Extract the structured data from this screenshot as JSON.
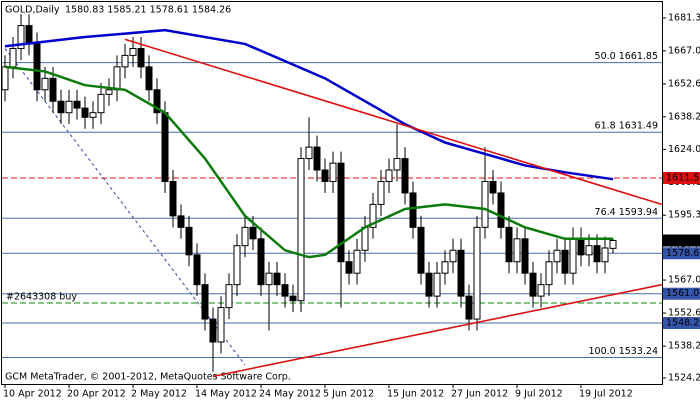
{
  "chart_data": {
    "type": "candlestick",
    "title": "GOLD,Daily",
    "subtitle": "1580.83 1585.21 1578.61 1584.26",
    "footer": "GCM MetaTrader, © 2001-2012, MetaQuotes Software Corp.",
    "categories": [
      "10 Apr 2012",
      null,
      null,
      null,
      null,
      null,
      null,
      null,
      "20 Apr 2012",
      null,
      null,
      null,
      null,
      null,
      null,
      null,
      "2 May 2012",
      null,
      null,
      null,
      null,
      null,
      null,
      null,
      "14 May 2012",
      null,
      null,
      null,
      null,
      null,
      null,
      null,
      "24 May 2012",
      null,
      null,
      null,
      null,
      null,
      null,
      null,
      "5 Jun 2012",
      null,
      null,
      null,
      null,
      null,
      null,
      null,
      "15 Jun 2012",
      null,
      null,
      null,
      null,
      null,
      null,
      null,
      "27 Jun 2012",
      null,
      null,
      null,
      null,
      null,
      null,
      null,
      "9 Jul 2012",
      null,
      null,
      null,
      null,
      null,
      null,
      null,
      "19 Jul 2012",
      null,
      null,
      null,
      null
    ],
    "open": [
      1650,
      1660,
      1668,
      1678,
      1670,
      1650,
      1655,
      1645,
      1640,
      1645,
      1642,
      1638,
      1640,
      1648,
      1650,
      1660,
      1665,
      1668,
      1660,
      1650,
      1640,
      1610,
      1595,
      1590,
      1578,
      1565,
      1550,
      1540,
      1555,
      1565,
      1582,
      1590,
      1585,
      1565,
      1570,
      1565,
      1560,
      1558,
      1620,
      1625,
      1615,
      1610,
      1618,
      1575,
      1570,
      1580,
      1590,
      1600,
      1610,
      1615,
      1620,
      1605,
      1590,
      1570,
      1560,
      1570,
      1575,
      1580,
      1560,
      1550,
      1590,
      1610,
      1605,
      1590,
      1575,
      1585,
      1570,
      1560,
      1565,
      1575,
      1580,
      1570,
      1585,
      1578,
      1582,
      1575,
      1580.83
    ],
    "high": [
      1665,
      1673,
      1683,
      1683,
      1675,
      1660,
      1660,
      1650,
      1650,
      1650,
      1647,
      1645,
      1653,
      1655,
      1665,
      1670,
      1673,
      1673,
      1665,
      1655,
      1645,
      1615,
      1600,
      1595,
      1583,
      1570,
      1555,
      1560,
      1570,
      1587,
      1595,
      1595,
      1590,
      1575,
      1575,
      1570,
      1565,
      1625,
      1638,
      1630,
      1620,
      1623,
      1623,
      1580,
      1585,
      1595,
      1605,
      1615,
      1620,
      1635,
      1625,
      1610,
      1595,
      1575,
      1575,
      1580,
      1585,
      1585,
      1565,
      1595,
      1625,
      1615,
      1610,
      1595,
      1590,
      1590,
      1575,
      1570,
      1580,
      1585,
      1585,
      1590,
      1590,
      1587,
      1587,
      1586,
      1585.21
    ],
    "low": [
      1645,
      1655,
      1663,
      1665,
      1645,
      1645,
      1640,
      1635,
      1635,
      1637,
      1633,
      1633,
      1635,
      1643,
      1645,
      1655,
      1660,
      1655,
      1645,
      1635,
      1605,
      1590,
      1585,
      1573,
      1560,
      1545,
      1527,
      1535,
      1550,
      1560,
      1577,
      1580,
      1560,
      1545,
      1560,
      1555,
      1553,
      1553,
      1615,
      1610,
      1605,
      1605,
      1555,
      1565,
      1565,
      1575,
      1585,
      1595,
      1605,
      1610,
      1600,
      1585,
      1565,
      1555,
      1555,
      1565,
      1570,
      1555,
      1545,
      1545,
      1585,
      1600,
      1585,
      1570,
      1570,
      1565,
      1555,
      1555,
      1560,
      1570,
      1565,
      1565,
      1573,
      1573,
      1570,
      1570,
      1578.61
    ],
    "close": [
      1660,
      1668,
      1678,
      1670,
      1650,
      1655,
      1645,
      1640,
      1645,
      1642,
      1638,
      1640,
      1648,
      1650,
      1660,
      1665,
      1668,
      1660,
      1650,
      1640,
      1610,
      1595,
      1590,
      1578,
      1565,
      1550,
      1540,
      1555,
      1565,
      1582,
      1590,
      1585,
      1565,
      1570,
      1565,
      1560,
      1558,
      1620,
      1625,
      1615,
      1610,
      1618,
      1575,
      1570,
      1580,
      1590,
      1600,
      1610,
      1615,
      1620,
      1605,
      1590,
      1570,
      1560,
      1570,
      1575,
      1580,
      1560,
      1550,
      1590,
      1610,
      1605,
      1590,
      1575,
      1585,
      1570,
      1560,
      1565,
      1575,
      1580,
      1570,
      1585,
      1578,
      1582,
      1575,
      1581,
      1584.26
    ],
    "lines": [
      {
        "color": "#0000cc",
        "x": [
          0,
          10,
          20,
          30,
          40,
          50,
          55,
          60,
          65,
          70,
          76
        ],
        "values": [
          1669,
          1673,
          1676,
          1670,
          1655,
          1635,
          1627,
          1622,
          1617,
          1614,
          1611
        ]
      },
      {
        "color": "#0a7a0a",
        "x": [
          0,
          5,
          10,
          15,
          20,
          25,
          30,
          35,
          38,
          40,
          45,
          50,
          55,
          60,
          65,
          70,
          76
        ],
        "values": [
          1660,
          1658,
          1652,
          1650,
          1640,
          1620,
          1595,
          1580,
          1577,
          1578,
          1590,
          1598,
          1600,
          1598,
          1590,
          1585,
          1585
        ]
      },
      {
        "color": "#dd1111",
        "x": [
          15,
          82.1
        ],
        "values": [
          1672,
          1600
        ]
      },
      {
        "color": "#dd1111",
        "x": [
          26,
          82.1
        ],
        "values": [
          1525,
          1565
        ]
      }
    ],
    "fib_line": {
      "color": "#3344aa",
      "x": [
        0,
        30
      ],
      "values": [
        1668,
        1530
      ]
    },
    "fib_levels": [
      {
        "label": "50.0 1661.85",
        "value": 1661.85
      },
      {
        "label": "61.8 1631.49",
        "value": 1631.49
      },
      {
        "label": "76.4 1593.94",
        "value": 1593.94
      },
      {
        "label": "100.0 1533.24",
        "value": 1533.24
      }
    ],
    "price_tags": [
      {
        "value": 1611.52,
        "color": "#dd1111"
      },
      {
        "value": 1584.26,
        "color": "#000000"
      },
      {
        "value": 1578.69,
        "color": "#3355aa"
      },
      {
        "value": 1561.05,
        "color": "#3355aa"
      },
      {
        "value": 1548.28,
        "color": "#3355aa"
      }
    ],
    "order": {
      "label": "#2643308 buy",
      "value": 1557
    },
    "ylim": [
      1521.67,
      1689.16
    ],
    "yticks": [
      1681.31,
      {
        "value": 1667,
        "label": "1667.00"
      },
      {
        "value": 1652.6,
        "label": "1652.60"
      },
      {
        "value": 1638.2,
        "label": "1638.20"
      },
      {
        "value": 1624,
        "label": "1624.00"
      },
      {
        "value": 1609.6,
        "label": "1609.60"
      },
      {
        "value": 1595.3,
        "label": "1595.30"
      },
      {
        "value": 1581,
        "label": "1581.00"
      },
      {
        "value": 1567,
        "label": "1567.00"
      },
      {
        "value": 1552.6,
        "label": "1552.60"
      },
      {
        "value": 1538.2,
        "label": "1538.20"
      },
      1524.29
    ]
  }
}
